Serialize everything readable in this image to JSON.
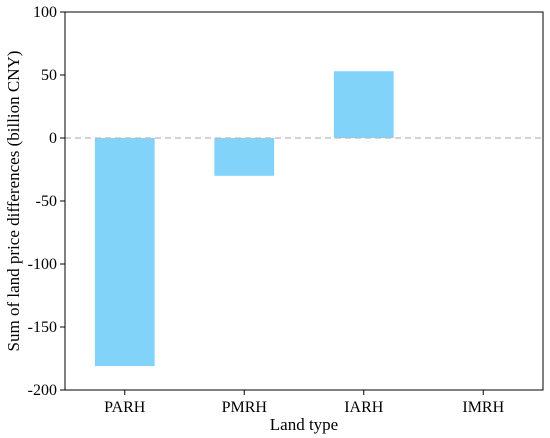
{
  "chart_data": {
    "type": "bar",
    "xlabel": "Land type",
    "ylabel": "Sum of land price differences (billion CNY)",
    "categories": [
      "PARH",
      "PMRH",
      "IARH",
      "IMRH"
    ],
    "values": [
      -181,
      -30,
      53,
      0
    ],
    "ylim": [
      -200,
      100
    ],
    "yticks": [
      -200,
      -150,
      -100,
      -50,
      0,
      50,
      100
    ],
    "reference_line": {
      "y": 0,
      "style": "dashed"
    },
    "grid": false,
    "colors": {
      "bar": "#82d3f9",
      "reference_line": "#bbbbbb",
      "axis": "#000000"
    }
  }
}
